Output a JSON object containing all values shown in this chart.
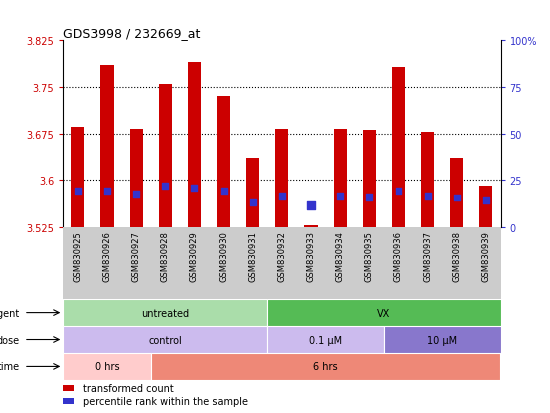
{
  "title": "GDS3998 / 232669_at",
  "samples": [
    "GSM830925",
    "GSM830926",
    "GSM830927",
    "GSM830928",
    "GSM830929",
    "GSM830930",
    "GSM830931",
    "GSM830932",
    "GSM830933",
    "GSM830934",
    "GSM830935",
    "GSM830936",
    "GSM830937",
    "GSM830938",
    "GSM830939"
  ],
  "bar_values": [
    3.685,
    3.785,
    3.683,
    3.755,
    3.79,
    3.735,
    3.635,
    3.683,
    3.527,
    3.683,
    3.68,
    3.782,
    3.677,
    3.635,
    3.59
  ],
  "blue_dot_y": [
    3.582,
    3.582,
    3.578,
    3.59,
    3.588,
    3.582,
    3.565,
    3.575,
    3.56,
    3.575,
    3.573,
    3.582,
    3.575,
    3.572,
    3.568
  ],
  "blue_dot_size": [
    18,
    18,
    18,
    18,
    18,
    18,
    18,
    18,
    30,
    18,
    18,
    18,
    18,
    18,
    18
  ],
  "ymin": 3.525,
  "ymax": 3.825,
  "yticks": [
    3.525,
    3.6,
    3.675,
    3.75,
    3.825
  ],
  "ytick_labels": [
    "3.525",
    "3.6",
    "3.675",
    "3.75",
    "3.825"
  ],
  "grid_lines": [
    3.6,
    3.675,
    3.75
  ],
  "right_yticks": [
    0,
    25,
    50,
    75,
    100
  ],
  "right_ytick_labels": [
    "0",
    "25",
    "50",
    "75",
    "100%"
  ],
  "bar_color": "#cc0000",
  "dot_color": "#3333cc",
  "bar_width": 0.45,
  "left_color": "#cc0000",
  "right_color": "#3333cc",
  "agent_row": {
    "label": "agent",
    "segments": [
      {
        "text": "untreated",
        "start": 0,
        "end": 7,
        "color": "#aaddaa"
      },
      {
        "text": "VX",
        "start": 7,
        "end": 15,
        "color": "#55bb55"
      }
    ]
  },
  "dose_row": {
    "label": "dose",
    "segments": [
      {
        "text": "control",
        "start": 0,
        "end": 7,
        "color": "#ccbbee"
      },
      {
        "text": "0.1 μM",
        "start": 7,
        "end": 11,
        "color": "#ccbbee"
      },
      {
        "text": "10 μM",
        "start": 11,
        "end": 15,
        "color": "#8877cc"
      }
    ]
  },
  "time_row": {
    "label": "time",
    "segments": [
      {
        "text": "0 hrs",
        "start": 0,
        "end": 3,
        "color": "#ffcccc"
      },
      {
        "text": "6 hrs",
        "start": 3,
        "end": 15,
        "color": "#ee8877"
      }
    ]
  },
  "legend": [
    {
      "label": "transformed count",
      "color": "#cc0000",
      "marker": "s"
    },
    {
      "label": "percentile rank within the sample",
      "color": "#3333cc",
      "marker": "s"
    }
  ],
  "bg_color": "#ffffff",
  "plot_bg": "#ffffff",
  "xtick_bg": "#cccccc"
}
